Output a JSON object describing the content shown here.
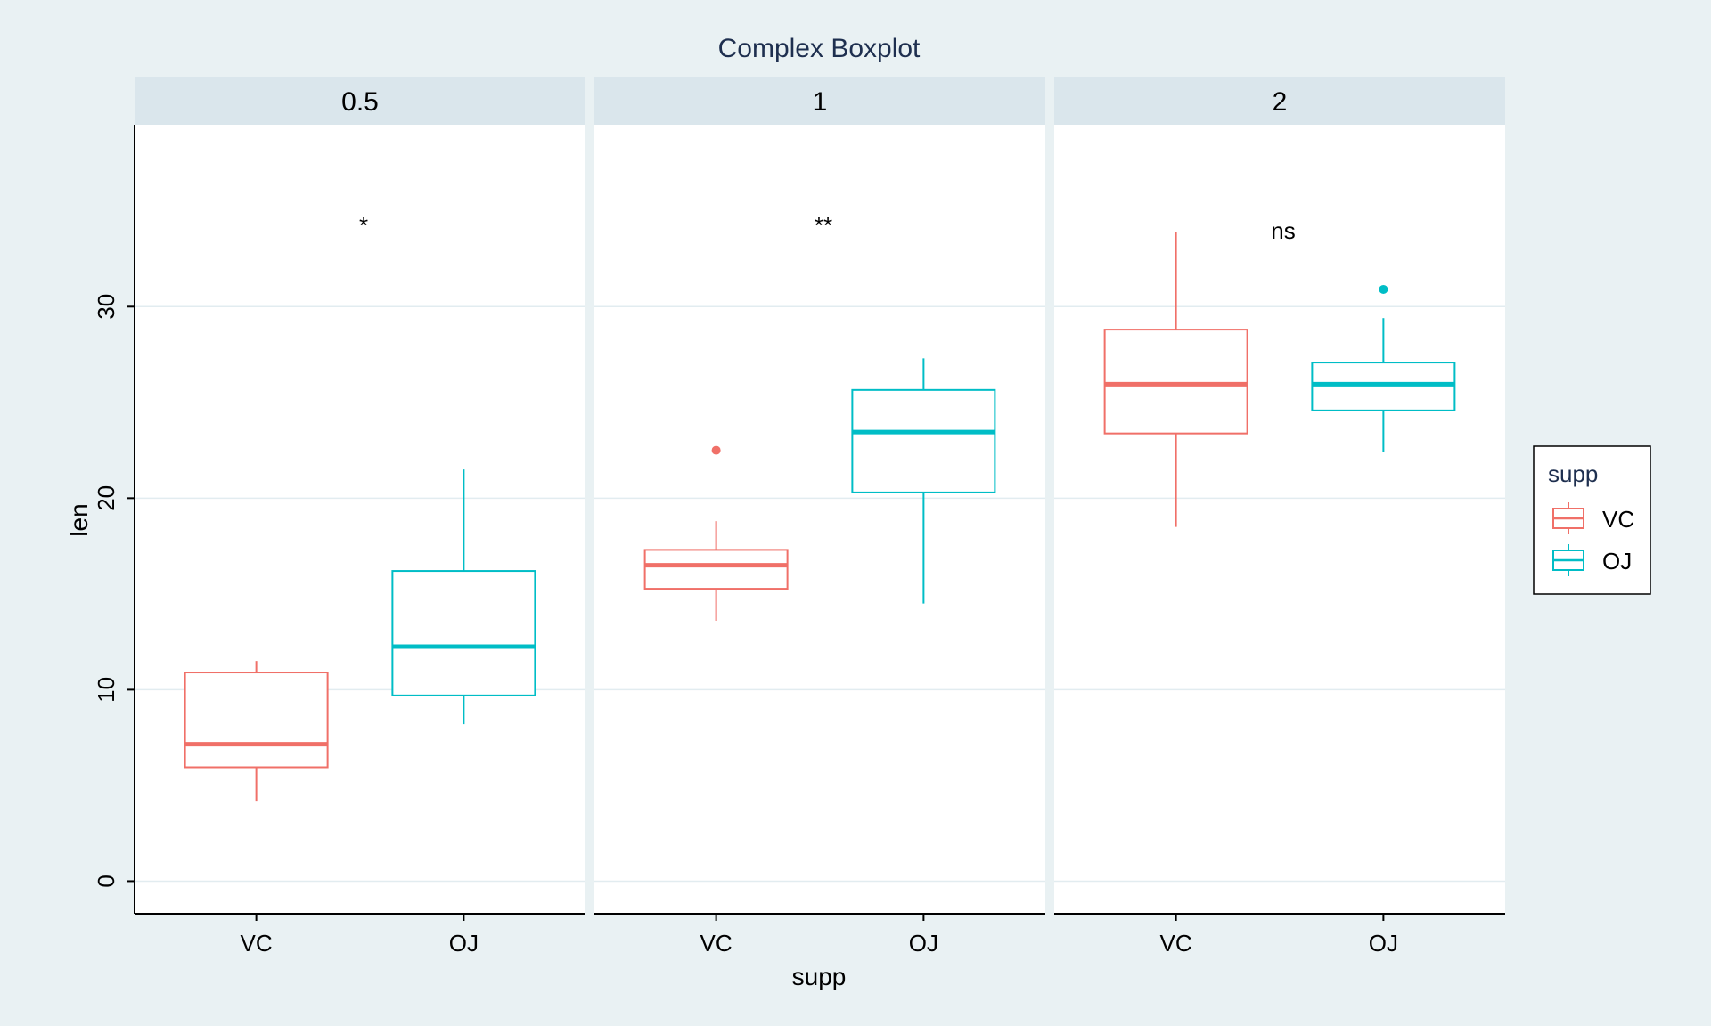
{
  "chart_data": {
    "type": "boxplot",
    "title": "Complex Boxplot",
    "xlabel": "supp",
    "ylabel": "len",
    "ylim": [
      -1.7,
      39.5
    ],
    "yticks": [
      0,
      10,
      20,
      30
    ],
    "grid": true,
    "legend_position": "right",
    "facets": [
      {
        "label": "0.5",
        "annotation": "*",
        "boxes": [
          {
            "supp": "VC",
            "whisker_low": 4.2,
            "q1": 5.95,
            "median": 7.15,
            "q3": 10.9,
            "whisker_high": 11.5,
            "outliers": []
          },
          {
            "supp": "OJ",
            "whisker_low": 8.2,
            "q1": 9.7,
            "median": 12.25,
            "q3": 16.2,
            "whisker_high": 21.5,
            "outliers": []
          }
        ]
      },
      {
        "label": "1",
        "annotation": "**",
        "boxes": [
          {
            "supp": "VC",
            "whisker_low": 13.6,
            "q1": 15.27,
            "median": 16.5,
            "q3": 17.3,
            "whisker_high": 18.8,
            "outliers": [
              22.5
            ]
          },
          {
            "supp": "OJ",
            "whisker_low": 14.5,
            "q1": 20.3,
            "median": 23.45,
            "q3": 25.65,
            "whisker_high": 27.3,
            "outliers": []
          }
        ]
      },
      {
        "label": "2",
        "annotation": "ns",
        "boxes": [
          {
            "supp": "VC",
            "whisker_low": 18.5,
            "q1": 23.38,
            "median": 25.95,
            "q3": 28.8,
            "whisker_high": 33.9,
            "outliers": []
          },
          {
            "supp": "OJ",
            "whisker_low": 22.4,
            "q1": 24.58,
            "median": 25.95,
            "q3": 27.08,
            "whisker_high": 29.4,
            "outliers": [
              30.9
            ]
          }
        ]
      }
    ],
    "legend": {
      "title": "supp",
      "items": [
        {
          "label": "VC",
          "color": "#f07068"
        },
        {
          "label": "OJ",
          "color": "#00bdc6"
        }
      ]
    }
  },
  "colors": {
    "background": "#e9f1f3",
    "strip": "#dae6ec",
    "panel": "#ffffff",
    "grid": "#e2ecf0",
    "title": "#1e2f4f",
    "vc": "#f07068",
    "oj": "#00bdc6"
  }
}
